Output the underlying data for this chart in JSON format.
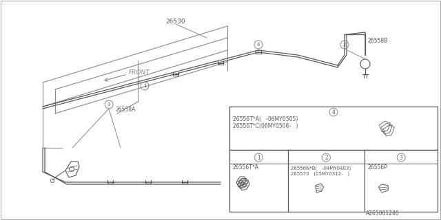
{
  "bg_color": "#ffffff",
  "line_color": "#888888",
  "dark_color": "#555555",
  "title_part": "26530",
  "front_label": "FRONT",
  "part_label_26558B": "26558B",
  "part_label_26558A": "26558A",
  "diagram_label": "A265001240",
  "table_top_line1": "26556T*A(   -06MY0505)",
  "table_top_line2": "26556T*C(06MY0506-   )",
  "table_bot_label1": "26556T*A",
  "table_bot_label2": "26556N*B(   -04MY0403)",
  "table_bot_label2b": "265570   (05MY0312-   )",
  "table_bot_label3": "26556P"
}
